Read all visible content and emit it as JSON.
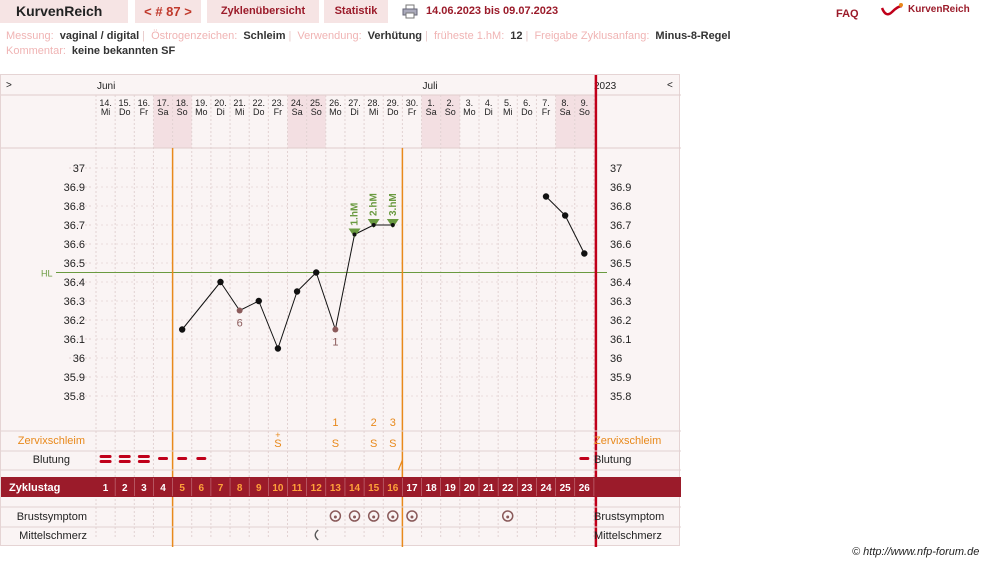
{
  "header": {
    "brand": "KurvenReich",
    "cycle_nav": "< # 87 >",
    "tab_overview": "Zyklenübersicht",
    "tab_statistics": "Statistik",
    "date_range": "14.06.2023 bis 09.07.2023",
    "faq": "FAQ",
    "logo_text": "KurvenReich"
  },
  "info": {
    "measurement_label": "Messung:",
    "measurement_value": "vaginal / digital",
    "estrogen_label": "Östrogenzeichen:",
    "estrogen_value": "Schleim",
    "usage_label": "Verwendung:",
    "usage_value": "Verhütung",
    "earliest_label": "früheste 1.hM:",
    "earliest_value": "12",
    "release_label": "Freigabe Zyklusanfang:",
    "release_value": "Minus-8-Regel",
    "comment_label": "Kommentar:",
    "comment_value": "keine bekannten SF"
  },
  "chart_data": {
    "type": "line",
    "months": [
      {
        "label": "Juni",
        "day_index": 0
      },
      {
        "label": "Juli",
        "day_index": 17
      }
    ],
    "year": "2023",
    "nav_left": ">",
    "nav_right": "<",
    "dates": [
      "14.",
      "15.",
      "16.",
      "17.",
      "18.",
      "19.",
      "20.",
      "21.",
      "22.",
      "23.",
      "24.",
      "25.",
      "26.",
      "27.",
      "28.",
      "29.",
      "30.",
      "1.",
      "2.",
      "3.",
      "4.",
      "5.",
      "6.",
      "7.",
      "8.",
      "9."
    ],
    "weekdays": [
      "Mi",
      "Do",
      "Fr",
      "Sa",
      "So",
      "Mo",
      "Di",
      "Mi",
      "Do",
      "Fr",
      "Sa",
      "So",
      "Mo",
      "Di",
      "Mi",
      "Do",
      "Fr",
      "Sa",
      "So",
      "Mo",
      "Di",
      "Mi",
      "Do",
      "Fr",
      "Sa",
      "So"
    ],
    "weekend_days": [
      4,
      5,
      11,
      12,
      18,
      19,
      25,
      26
    ],
    "cycle_days": [
      1,
      2,
      3,
      4,
      5,
      6,
      7,
      8,
      9,
      10,
      11,
      12,
      13,
      14,
      15,
      16,
      17,
      18,
      19,
      20,
      21,
      22,
      23,
      24,
      25,
      26
    ],
    "orange_cycle_days": [
      5,
      6,
      7,
      8,
      9,
      10,
      11,
      12,
      13,
      14,
      15,
      16
    ],
    "y_ticks": [
      "37",
      "36.9",
      "36.8",
      "36.7",
      "36.6",
      "36.5",
      "36.4",
      "36.3",
      "36.2",
      "36.1",
      "36",
      "35.9",
      "35.8"
    ],
    "ylim": [
      35.8,
      37.0
    ],
    "coverline_label": "HL",
    "coverline": 36.45,
    "temperatures": [
      {
        "day": 5,
        "temp": 36.15
      },
      {
        "day": 7,
        "temp": 36.4
      },
      {
        "day": 8,
        "temp": 36.25,
        "marker": "excluded",
        "note": "6"
      },
      {
        "day": 9,
        "temp": 36.3
      },
      {
        "day": 10,
        "temp": 36.05
      },
      {
        "day": 11,
        "temp": 36.35
      },
      {
        "day": 12,
        "temp": 36.45
      },
      {
        "day": 13,
        "temp": 36.15,
        "marker": "excluded",
        "note": "1"
      },
      {
        "day": 14,
        "temp": 36.65,
        "marker": "hm",
        "label": "1.hM"
      },
      {
        "day": 15,
        "temp": 36.7,
        "marker": "hm",
        "label": "2.hM"
      },
      {
        "day": 16,
        "temp": 36.7,
        "marker": "hm",
        "label": "3.hM"
      },
      {
        "day": 24,
        "temp": 36.85
      },
      {
        "day": 25,
        "temp": 36.75
      },
      {
        "day": 26,
        "temp": 36.55
      }
    ],
    "mucus_count": [
      {
        "day": 13,
        "text": "1"
      },
      {
        "day": 15,
        "text": "2"
      },
      {
        "day": 16,
        "text": "3"
      }
    ],
    "mucus": [
      {
        "day": 10,
        "text": "S",
        "super": "+"
      },
      {
        "day": 13,
        "text": "S"
      },
      {
        "day": 15,
        "text": "S"
      },
      {
        "day": 16,
        "text": "S"
      }
    ],
    "bleeding": [
      {
        "day": 1,
        "strength": "heavy"
      },
      {
        "day": 2,
        "strength": "heavy"
      },
      {
        "day": 3,
        "strength": "heavy"
      },
      {
        "day": 4,
        "strength": "light"
      },
      {
        "day": 5,
        "strength": "light"
      },
      {
        "day": 6,
        "strength": "light"
      },
      {
        "day": 26,
        "strength": "medium"
      }
    ],
    "breast_symptom_days": [
      13,
      14,
      15,
      16,
      17,
      22
    ],
    "mittelschmerz_days": [
      12
    ],
    "row_labels": {
      "mucus": "Zervixschleim",
      "bleeding": "Blutung",
      "cycle": "Zyklustag",
      "breast": "Brustsymptom",
      "mittelschmerz": "Mittelschmerz"
    },
    "colors": {
      "accent": "#9b1b2a",
      "orange": "#e8891b",
      "red": "#c0001a",
      "green": "#6a9a40",
      "weekend_bg": "#f3dfe2"
    }
  },
  "footer": {
    "copyright": "© http://www.nfp-forum.de"
  }
}
